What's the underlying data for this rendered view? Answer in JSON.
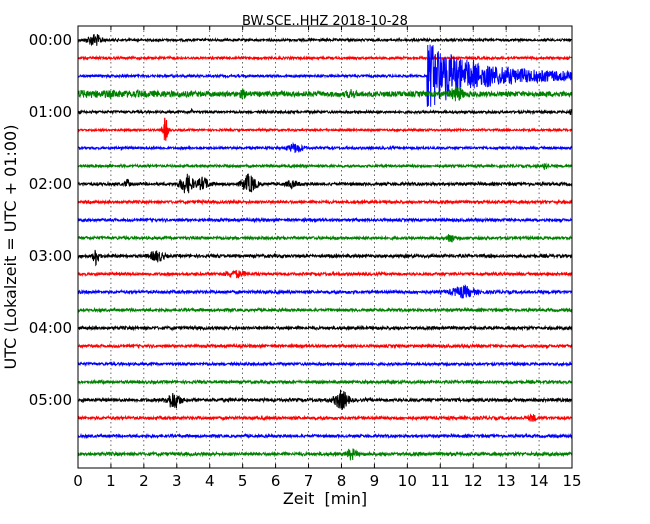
{
  "chart_data": {
    "type": "line",
    "subtype": "seismogram-dayplot",
    "title": "BW.SCE..HHZ 2018-10-28",
    "xlabel": "Zeit  [min]",
    "ylabel": "UTC (Lokalzeit = UTC + 01:00)",
    "xlim": [
      0,
      15
    ],
    "x_ticks": [
      "0",
      "1",
      "2",
      "3",
      "4",
      "5",
      "6",
      "7",
      "8",
      "9",
      "10",
      "11",
      "12",
      "13",
      "14",
      "15"
    ],
    "y_tick_labels": [
      {
        "trace": 0,
        "label": "00:00"
      },
      {
        "trace": 4,
        "label": "01:00"
      },
      {
        "trace": 8,
        "label": "02:00"
      },
      {
        "trace": 12,
        "label": "03:00"
      },
      {
        "trace": 16,
        "label": "04:00"
      },
      {
        "trace": 20,
        "label": "05:00"
      }
    ],
    "trace_interval_min": 15,
    "trace_count": 24,
    "colors": [
      "#000000",
      "#ff0000",
      "#0000ff",
      "#008000"
    ],
    "grid": "vertical dotted",
    "base_noise": [
      1.2,
      1.2,
      1.2,
      2.6,
      1.2,
      1.0,
      1.2,
      1.2,
      1.5,
      1.4,
      1.4,
      1.4,
      1.5,
      1.4,
      1.5,
      1.4,
      1.5,
      1.4,
      1.3,
      1.4,
      1.6,
      1.5,
      1.4,
      1.6
    ],
    "events": [
      {
        "trace": 0,
        "minute": 0.5,
        "amp": 6,
        "dur": 0.35
      },
      {
        "trace": 2,
        "minute": 10.6,
        "amp": 34,
        "dur": 4.4,
        "quake": true
      },
      {
        "trace": 3,
        "minute": 5.0,
        "amp": 3,
        "dur": 0.15
      },
      {
        "trace": 3,
        "minute": 8.3,
        "amp": 3,
        "dur": 0.2
      },
      {
        "trace": 3,
        "minute": 11.5,
        "amp": 6,
        "dur": 0.3
      },
      {
        "trace": 4,
        "minute": 3.45,
        "amp": 3,
        "dur": 0.05
      },
      {
        "trace": 4,
        "minute": 14.95,
        "amp": 3,
        "dur": 0.05
      },
      {
        "trace": 5,
        "minute": 2.65,
        "amp": 12,
        "dur": 0.15
      },
      {
        "trace": 6,
        "minute": 6.6,
        "amp": 4,
        "dur": 0.4
      },
      {
        "trace": 7,
        "minute": 14.2,
        "amp": 4,
        "dur": 0.12
      },
      {
        "trace": 8,
        "minute": 1.5,
        "amp": 4,
        "dur": 0.12
      },
      {
        "trace": 8,
        "minute": 3.3,
        "amp": 9,
        "dur": 0.35
      },
      {
        "trace": 8,
        "minute": 3.8,
        "amp": 6,
        "dur": 0.3
      },
      {
        "trace": 8,
        "minute": 5.2,
        "amp": 9,
        "dur": 0.35
      },
      {
        "trace": 8,
        "minute": 6.5,
        "amp": 3,
        "dur": 0.3
      },
      {
        "trace": 11,
        "minute": 11.3,
        "amp": 5,
        "dur": 0.15
      },
      {
        "trace": 12,
        "minute": 0.55,
        "amp": 9,
        "dur": 0.15
      },
      {
        "trace": 12,
        "minute": 2.4,
        "amp": 5,
        "dur": 0.35
      },
      {
        "trace": 13,
        "minute": 4.8,
        "amp": 3,
        "dur": 0.5
      },
      {
        "trace": 14,
        "minute": 11.7,
        "amp": 5,
        "dur": 0.6
      },
      {
        "trace": 20,
        "minute": 2.9,
        "amp": 8,
        "dur": 0.35
      },
      {
        "trace": 20,
        "minute": 8.0,
        "amp": 9,
        "dur": 0.35
      },
      {
        "trace": 21,
        "minute": 13.8,
        "amp": 3,
        "dur": 0.2
      },
      {
        "trace": 23,
        "minute": 8.3,
        "amp": 5,
        "dur": 0.25
      }
    ]
  }
}
